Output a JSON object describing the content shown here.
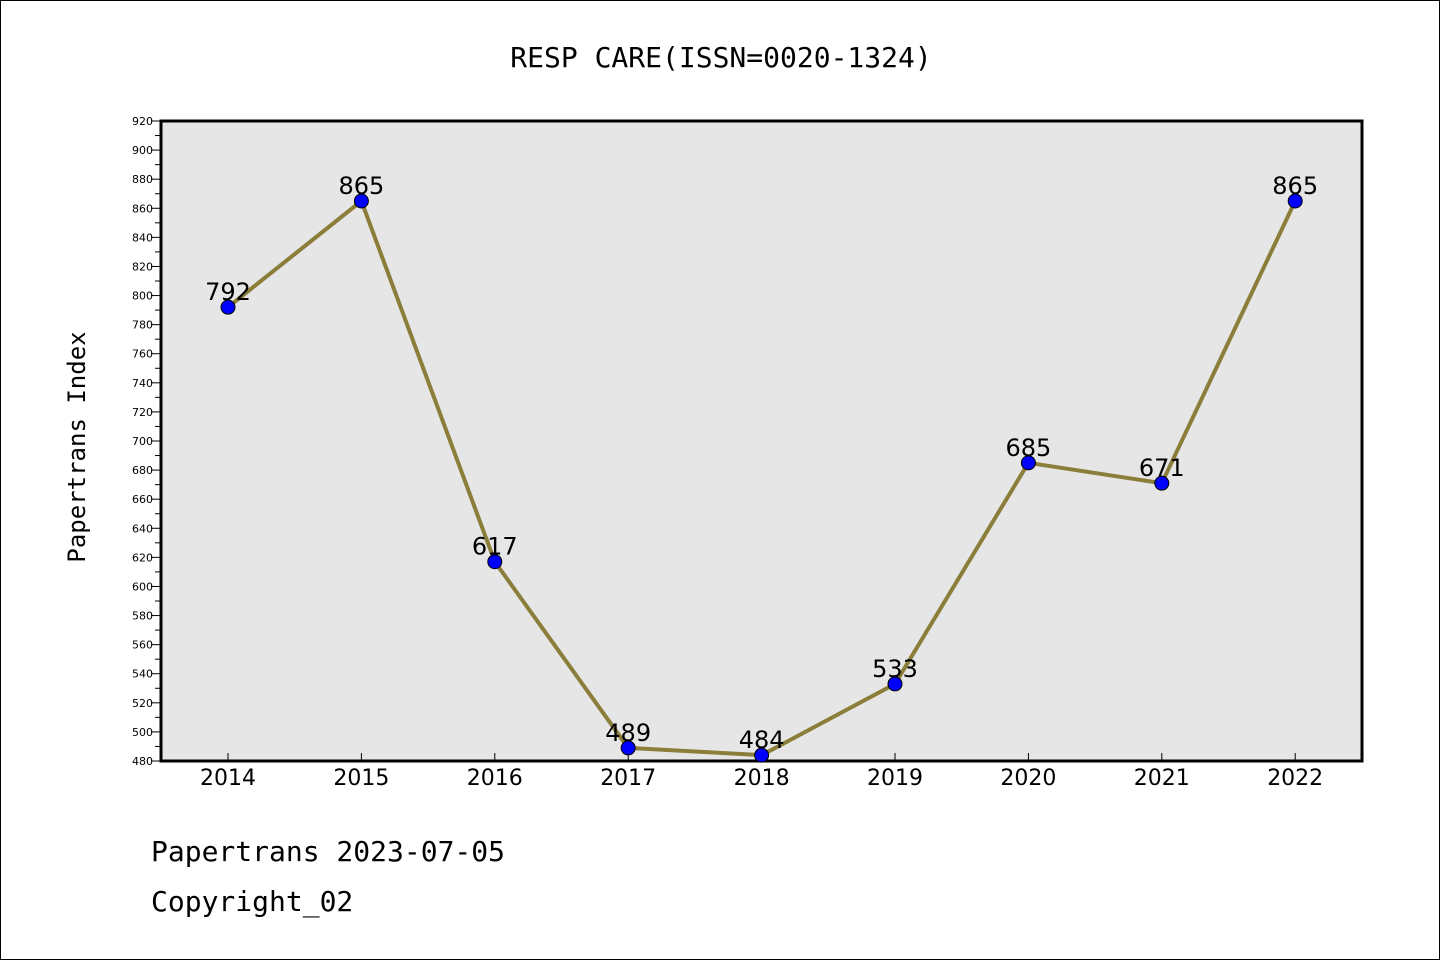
{
  "chart_data": {
    "type": "line",
    "title": "RESP CARE(ISSN=0020-1324)",
    "ylabel": "Papertrans Index",
    "xlabel": "",
    "categories": [
      "2014",
      "2015",
      "2016",
      "2017",
      "2018",
      "2019",
      "2020",
      "2021",
      "2022"
    ],
    "series": [
      {
        "values": [
          792,
          865,
          617,
          489,
          484,
          533,
          685,
          671,
          865
        ]
      }
    ],
    "ylim": [
      480,
      920
    ],
    "yticks": [
      480,
      500,
      520,
      540,
      560,
      580,
      600,
      620,
      640,
      660,
      680,
      700,
      720,
      740,
      760,
      780,
      800,
      820,
      840,
      860,
      880,
      900,
      920
    ],
    "grid": false,
    "legend": "none",
    "colors": {
      "line": "#8b7d3a",
      "marker": "#0000ff",
      "plot_background": "#e6e6e6"
    }
  },
  "footer": {
    "line1": "Papertrans 2023-07-05",
    "line2": "Copyright_02"
  }
}
